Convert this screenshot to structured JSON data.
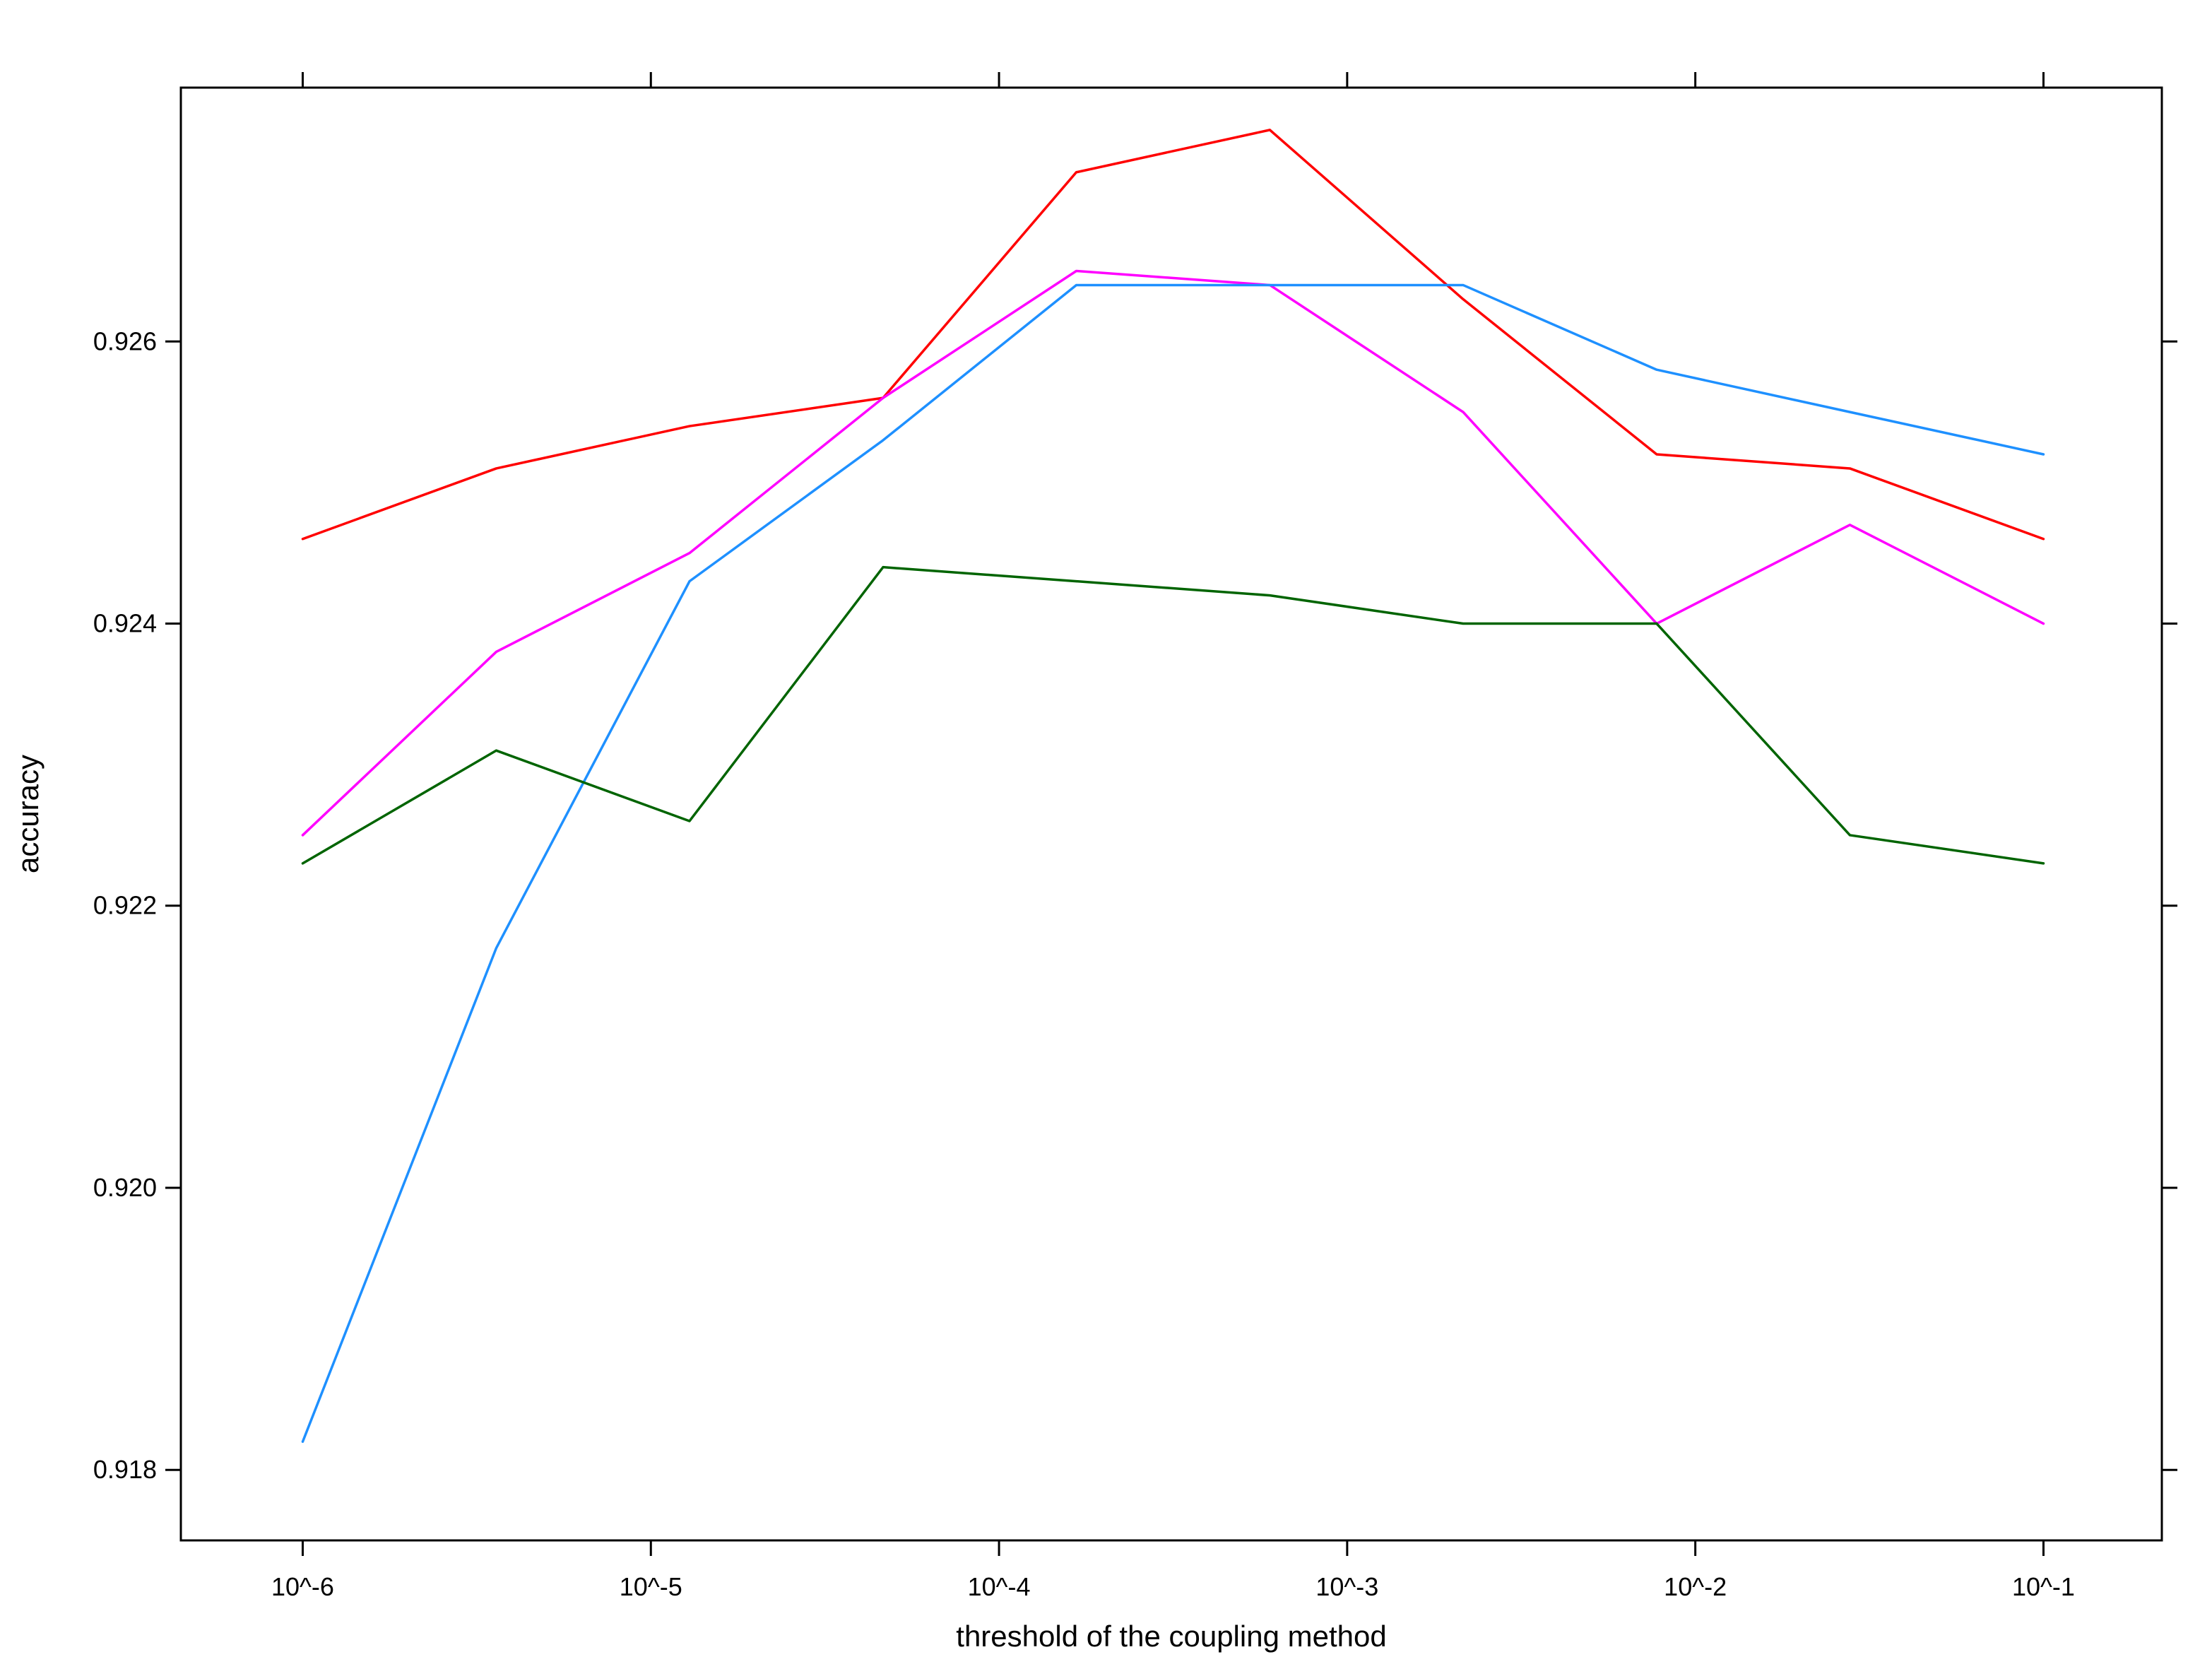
{
  "chart_data": {
    "type": "line",
    "title": "",
    "xlabel": "threshold of the coupling method",
    "ylabel": "accuracy",
    "x_scale": "log10",
    "grid": false,
    "legend": "none",
    "xlim_log10": [
      -6.35,
      -0.66
    ],
    "ylim": [
      0.9175,
      0.9278
    ],
    "x_log10": [
      -6,
      -5.444,
      -4.889,
      -4.333,
      -3.778,
      -3.222,
      -2.667,
      -2.111,
      -1.556,
      -1
    ],
    "x_values_approx": [
      1e-06,
      3.6e-06,
      1.3e-05,
      4.6e-05,
      0.00017,
      0.0006,
      0.0022,
      0.0077,
      0.028,
      0.1
    ],
    "x_ticks": [
      {
        "log10": -6,
        "label": "10^-6"
      },
      {
        "log10": -5,
        "label": "10^-5"
      },
      {
        "log10": -4,
        "label": "10^-4"
      },
      {
        "log10": -3,
        "label": "10^-3"
      },
      {
        "log10": -2,
        "label": "10^-2"
      },
      {
        "log10": -1,
        "label": "10^-1"
      }
    ],
    "y_ticks": [
      {
        "value": 0.918,
        "label": "0.918"
      },
      {
        "value": 0.92,
        "label": "0.920"
      },
      {
        "value": 0.922,
        "label": "0.922"
      },
      {
        "value": 0.924,
        "label": "0.924"
      },
      {
        "value": 0.926,
        "label": "0.926"
      }
    ],
    "series": [
      {
        "name": "red",
        "color": "#ff0000",
        "values": [
          0.9246,
          0.9251,
          0.9254,
          0.9256,
          0.9272,
          0.9275,
          0.9263,
          0.9252,
          0.9251,
          0.9246
        ]
      },
      {
        "name": "magenta",
        "color": "#ff00ff",
        "values": [
          0.9225,
          0.9238,
          0.9245,
          0.9256,
          0.9265,
          0.9264,
          0.9255,
          0.924,
          0.9247,
          0.924
        ]
      },
      {
        "name": "blue",
        "color": "#1e90ff",
        "values": [
          0.9182,
          0.9217,
          0.9243,
          0.9253,
          0.9264,
          0.9264,
          0.9264,
          0.9258,
          0.9255,
          0.9252
        ]
      },
      {
        "name": "darkgreen",
        "color": "#006400",
        "values": [
          0.9223,
          0.9231,
          0.9226,
          0.9244,
          0.9243,
          0.9242,
          0.924,
          0.924,
          0.9225,
          0.9223
        ]
      }
    ]
  }
}
